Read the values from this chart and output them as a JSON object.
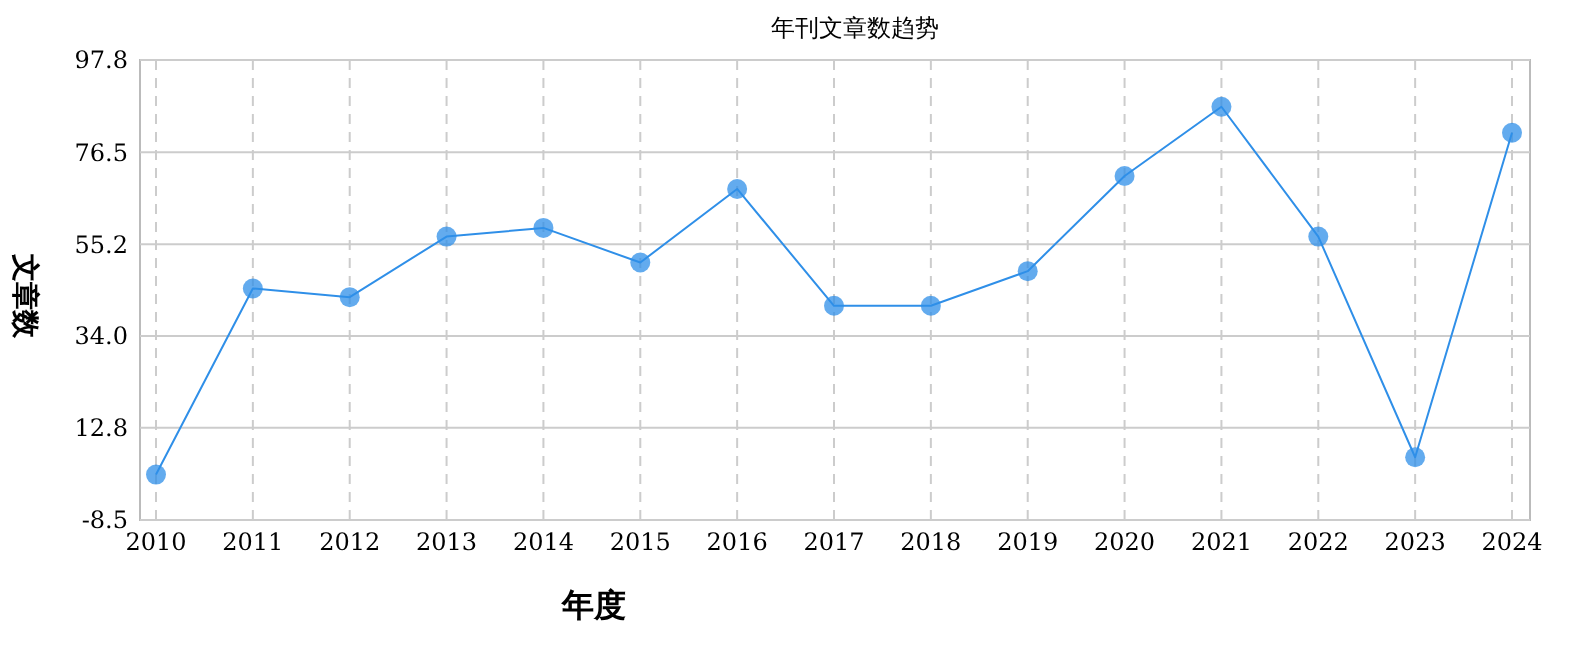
{
  "chart_data": {
    "type": "line",
    "title": "年刊文章数趋势",
    "xlabel": "年度",
    "ylabel": "文章数",
    "categories": [
      "2010",
      "2011",
      "2012",
      "2013",
      "2014",
      "2015",
      "2016",
      "2017",
      "2018",
      "2019",
      "2020",
      "2021",
      "2022",
      "2023",
      "2024"
    ],
    "series": [
      {
        "color": "#2f8fe8",
        "values": [
          2,
          45,
          43,
          57,
          59,
          51,
          68,
          41,
          41,
          49,
          71,
          87,
          57,
          6,
          81
        ]
      }
    ],
    "ylim": [
      -8.5,
      97.8
    ],
    "yticks": [
      -8.5,
      12.8,
      {
        "value": 34,
        "label": "34.0"
      },
      55.2,
      76.5,
      97.8
    ],
    "grid": true,
    "marker": "circle",
    "line_style": "solid"
  }
}
